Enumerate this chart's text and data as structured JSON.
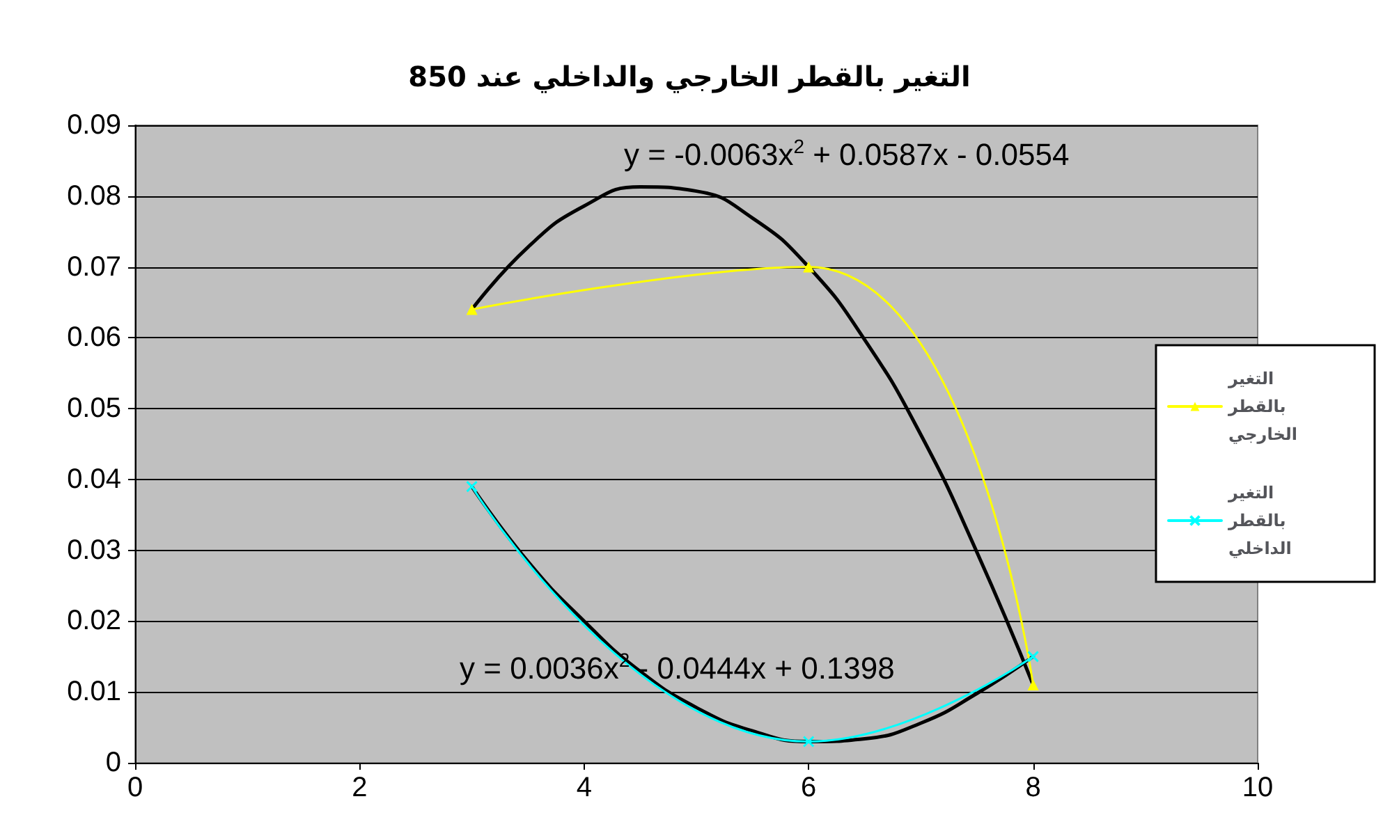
{
  "chart_data": {
    "type": "line",
    "title": "التغير بالقطر الخارجي والداخلي عند 850",
    "series": [
      {
        "name": "التغير بالقطر الخارجي",
        "color": "#ffff00",
        "marker": "triangle",
        "x": [
          3,
          6,
          8
        ],
        "values": [
          0.064,
          0.07,
          0.011
        ]
      },
      {
        "name": "التغير بالقطر الداخلي",
        "color": "#00ffff",
        "marker": "cross",
        "x": [
          3,
          6,
          8
        ],
        "values": [
          0.039,
          0.003,
          0.015
        ]
      },
      {
        "color": "#000000",
        "marker": "none",
        "x": [
          3,
          3.5,
          4,
          4.5,
          5,
          5.5,
          6,
          6.5,
          7,
          7.5,
          8
        ],
        "values": [
          0.064,
          0.0728,
          0.0786,
          0.0813,
          0.0807,
          0.0769,
          0.07,
          0.0597,
          0.0463,
          0.0297,
          0.011
        ]
      },
      {
        "color": "#000000",
        "marker": "none",
        "x": [
          3,
          3.5,
          4,
          4.5,
          5,
          5.5,
          6,
          6.5,
          7,
          7.5,
          8
        ],
        "values": [
          0.039,
          0.0284,
          0.02,
          0.0129,
          0.0078,
          0.0045,
          0.003,
          0.0034,
          0.0056,
          0.0098,
          0.015
        ]
      }
    ],
    "annotations": [
      "y = -0.0063x$^{2}$ + 0.0587x - 0.0554",
      "y = 0.0036x$^{2}$ - 0.0444x + 0.1398"
    ],
    "xlim": [
      0,
      10
    ],
    "xticks": [
      0,
      2,
      4,
      6,
      8,
      10
    ],
    "ylim": [
      0,
      0.09
    ],
    "yticks": [
      0,
      0.01,
      0.02,
      0.03,
      0.04,
      0.05,
      0.06,
      0.07,
      0.08,
      0.09
    ],
    "grid": "y",
    "legend": "right"
  }
}
